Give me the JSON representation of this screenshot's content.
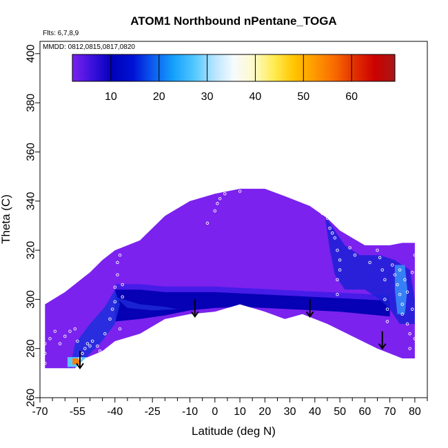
{
  "chart_data": {
    "type": "heatmap",
    "title": "ATOM1 Northbound nPentane_TOGA",
    "subtitle_flights": "Flts: 6,7,8,9",
    "subtitle_dates": "MMDD: 0812,0815,0817,0820",
    "xlabel": "Latitude (deg N)",
    "ylabel": "Theta (C)",
    "xlim": [
      -70,
      85
    ],
    "ylim": [
      260,
      405
    ],
    "x_ticks": [
      -70,
      -55,
      -40,
      -25,
      -10,
      0,
      10,
      20,
      30,
      40,
      50,
      60,
      70,
      80
    ],
    "x_minor_ticks": [
      -65,
      -60,
      -50,
      -45,
      -35,
      -30,
      -20,
      -15,
      -5,
      5,
      15,
      25,
      35,
      45,
      55,
      65,
      75,
      85
    ],
    "y_ticks": [
      260,
      280,
      300,
      320,
      340,
      360,
      380,
      400
    ],
    "colorbar": {
      "range": [
        2,
        69
      ],
      "ticks": [
        10,
        20,
        30,
        40,
        50,
        60
      ],
      "colors": [
        "#7a22ee",
        "#3a10dc",
        "#0000b8",
        "#0012d6",
        "#0c5cf0",
        "#14a0fb",
        "#4ec6ff",
        "#b4e4ff",
        "#f6fbff",
        "#fff9c8",
        "#ffec52",
        "#ffc400",
        "#ff9a00",
        "#f86a00",
        "#e23000",
        "#cc0000",
        "#a81818"
      ]
    },
    "outline": [
      [
        -68,
        272
      ],
      [
        -68,
        298
      ],
      [
        -60,
        303
      ],
      [
        -50,
        311
      ],
      [
        -45,
        316
      ],
      [
        -40,
        320
      ],
      [
        -30,
        324
      ],
      [
        -20,
        334
      ],
      [
        -10,
        340
      ],
      [
        0,
        343
      ],
      [
        10,
        345
      ],
      [
        20,
        345
      ],
      [
        28,
        342
      ],
      [
        38,
        338
      ],
      [
        45,
        333
      ],
      [
        50,
        328
      ],
      [
        55,
        325
      ],
      [
        60,
        322
      ],
      [
        65,
        322
      ],
      [
        70,
        322
      ],
      [
        75,
        323
      ],
      [
        80,
        323
      ],
      [
        80,
        276
      ],
      [
        75,
        276
      ],
      [
        65,
        280
      ],
      [
        55,
        285
      ],
      [
        45,
        290
      ],
      [
        35,
        294
      ],
      [
        28,
        292
      ],
      [
        20,
        295
      ],
      [
        10,
        298
      ],
      [
        0,
        295
      ],
      [
        -10,
        294
      ],
      [
        -20,
        292
      ],
      [
        -30,
        286
      ],
      [
        -40,
        283
      ],
      [
        -45,
        279
      ],
      [
        -52,
        276
      ],
      [
        -56,
        272
      ],
      [
        -62,
        272
      ]
    ],
    "blue_band": {
      "upper": [
        [
          -40,
          304
        ],
        [
          -30,
          304
        ],
        [
          -20,
          303
        ],
        [
          -10,
          303
        ],
        [
          0,
          303
        ],
        [
          10,
          302.5
        ],
        [
          20,
          302
        ],
        [
          30,
          301.5
        ],
        [
          40,
          301
        ],
        [
          50,
          300.5
        ],
        [
          60,
          300
        ],
        [
          70,
          299.5
        ]
      ],
      "lower": [
        [
          70,
          293
        ],
        [
          60,
          294
        ],
        [
          50,
          295
        ],
        [
          40,
          295.5
        ],
        [
          30,
          296
        ],
        [
          20,
          296.5
        ],
        [
          10,
          297
        ],
        [
          0,
          296.5
        ],
        [
          -10,
          295.5
        ],
        [
          -20,
          293.5
        ],
        [
          -30,
          292
        ],
        [
          -40,
          291
        ]
      ]
    },
    "hot_cell": {
      "x_range": [
        -57,
        -54
      ],
      "y_range": [
        273.5,
        276
      ],
      "value": 55
    },
    "arrows": [
      {
        "lat": -54,
        "top": 279,
        "tip": 272
      },
      {
        "lat": -8,
        "top": 300,
        "tip": 293
      },
      {
        "lat": 38,
        "top": 300,
        "tip": 293
      },
      {
        "lat": 67,
        "top": 287,
        "tip": 280
      }
    ],
    "samples": [
      {
        "lat": -68,
        "theta": 274
      },
      {
        "lat": -68,
        "theta": 278
      },
      {
        "lat": -68,
        "theta": 282
      },
      {
        "lat": -66,
        "theta": 284
      },
      {
        "lat": -64,
        "theta": 287
      },
      {
        "lat": -62,
        "theta": 282
      },
      {
        "lat": -60,
        "theta": 285
      },
      {
        "lat": -58,
        "theta": 287
      },
      {
        "lat": -56,
        "theta": 288
      },
      {
        "lat": -55,
        "theta": 283
      },
      {
        "lat": -54,
        "theta": 276
      },
      {
        "lat": -53,
        "theta": 278
      },
      {
        "lat": -52,
        "theta": 280
      },
      {
        "lat": -51,
        "theta": 282
      },
      {
        "lat": -50,
        "theta": 281
      },
      {
        "lat": -49,
        "theta": 283
      },
      {
        "lat": -47,
        "theta": 281
      },
      {
        "lat": -46,
        "theta": 279
      },
      {
        "lat": -44,
        "theta": 286
      },
      {
        "lat": -42,
        "theta": 292
      },
      {
        "lat": -41,
        "theta": 296
      },
      {
        "lat": -40,
        "theta": 299
      },
      {
        "lat": -40,
        "theta": 305
      },
      {
        "lat": -39,
        "theta": 310
      },
      {
        "lat": -39,
        "theta": 315
      },
      {
        "lat": -38,
        "theta": 318
      },
      {
        "lat": -38,
        "theta": 288
      },
      {
        "lat": -37,
        "theta": 301
      },
      {
        "lat": -37,
        "theta": 306
      },
      {
        "lat": -3,
        "theta": 331
      },
      {
        "lat": 0,
        "theta": 336
      },
      {
        "lat": 1,
        "theta": 339
      },
      {
        "lat": 2,
        "theta": 341
      },
      {
        "lat": 4,
        "theta": 343
      },
      {
        "lat": 8,
        "theta": 346
      },
      {
        "lat": 10,
        "theta": 344
      },
      {
        "lat": 42,
        "theta": 337
      },
      {
        "lat": 43,
        "theta": 335
      },
      {
        "lat": 45,
        "theta": 333
      },
      {
        "lat": 46,
        "theta": 329
      },
      {
        "lat": 47,
        "theta": 327
      },
      {
        "lat": 48,
        "theta": 325
      },
      {
        "lat": 49,
        "theta": 320
      },
      {
        "lat": 50,
        "theta": 316
      },
      {
        "lat": 50,
        "theta": 312
      },
      {
        "lat": 49,
        "theta": 308
      },
      {
        "lat": 49,
        "theta": 302
      },
      {
        "lat": 54,
        "theta": 321
      },
      {
        "lat": 56,
        "theta": 318
      },
      {
        "lat": 62,
        "theta": 315
      },
      {
        "lat": 65,
        "theta": 320
      },
      {
        "lat": 66,
        "theta": 317
      },
      {
        "lat": 67,
        "theta": 312
      },
      {
        "lat": 68,
        "theta": 308
      },
      {
        "lat": 68,
        "theta": 300
      },
      {
        "lat": 69,
        "theta": 296
      },
      {
        "lat": 69,
        "theta": 291
      },
      {
        "lat": 71,
        "theta": 314
      },
      {
        "lat": 72,
        "theta": 310
      },
      {
        "lat": 73,
        "theta": 306
      },
      {
        "lat": 74,
        "theta": 312
      },
      {
        "lat": 74,
        "theta": 302
      },
      {
        "lat": 75,
        "theta": 298
      },
      {
        "lat": 75,
        "theta": 294
      },
      {
        "lat": 76,
        "theta": 308
      },
      {
        "lat": 77,
        "theta": 303
      },
      {
        "lat": 77,
        "theta": 290
      },
      {
        "lat": 78,
        "theta": 286
      },
      {
        "lat": 78,
        "theta": 280
      },
      {
        "lat": 79,
        "theta": 296
      },
      {
        "lat": 79,
        "theta": 311
      },
      {
        "lat": 80,
        "theta": 318
      },
      {
        "lat": 80,
        "theta": 284
      }
    ]
  },
  "colors": {
    "background_fill": "#7b22ee",
    "dark_band": "#0000b0",
    "mid_blue": "#2a3ce0",
    "light_blue": "#42b0ff",
    "hot": "#f08010",
    "sample_marker": "#ffffff",
    "arrow": "#000000"
  }
}
